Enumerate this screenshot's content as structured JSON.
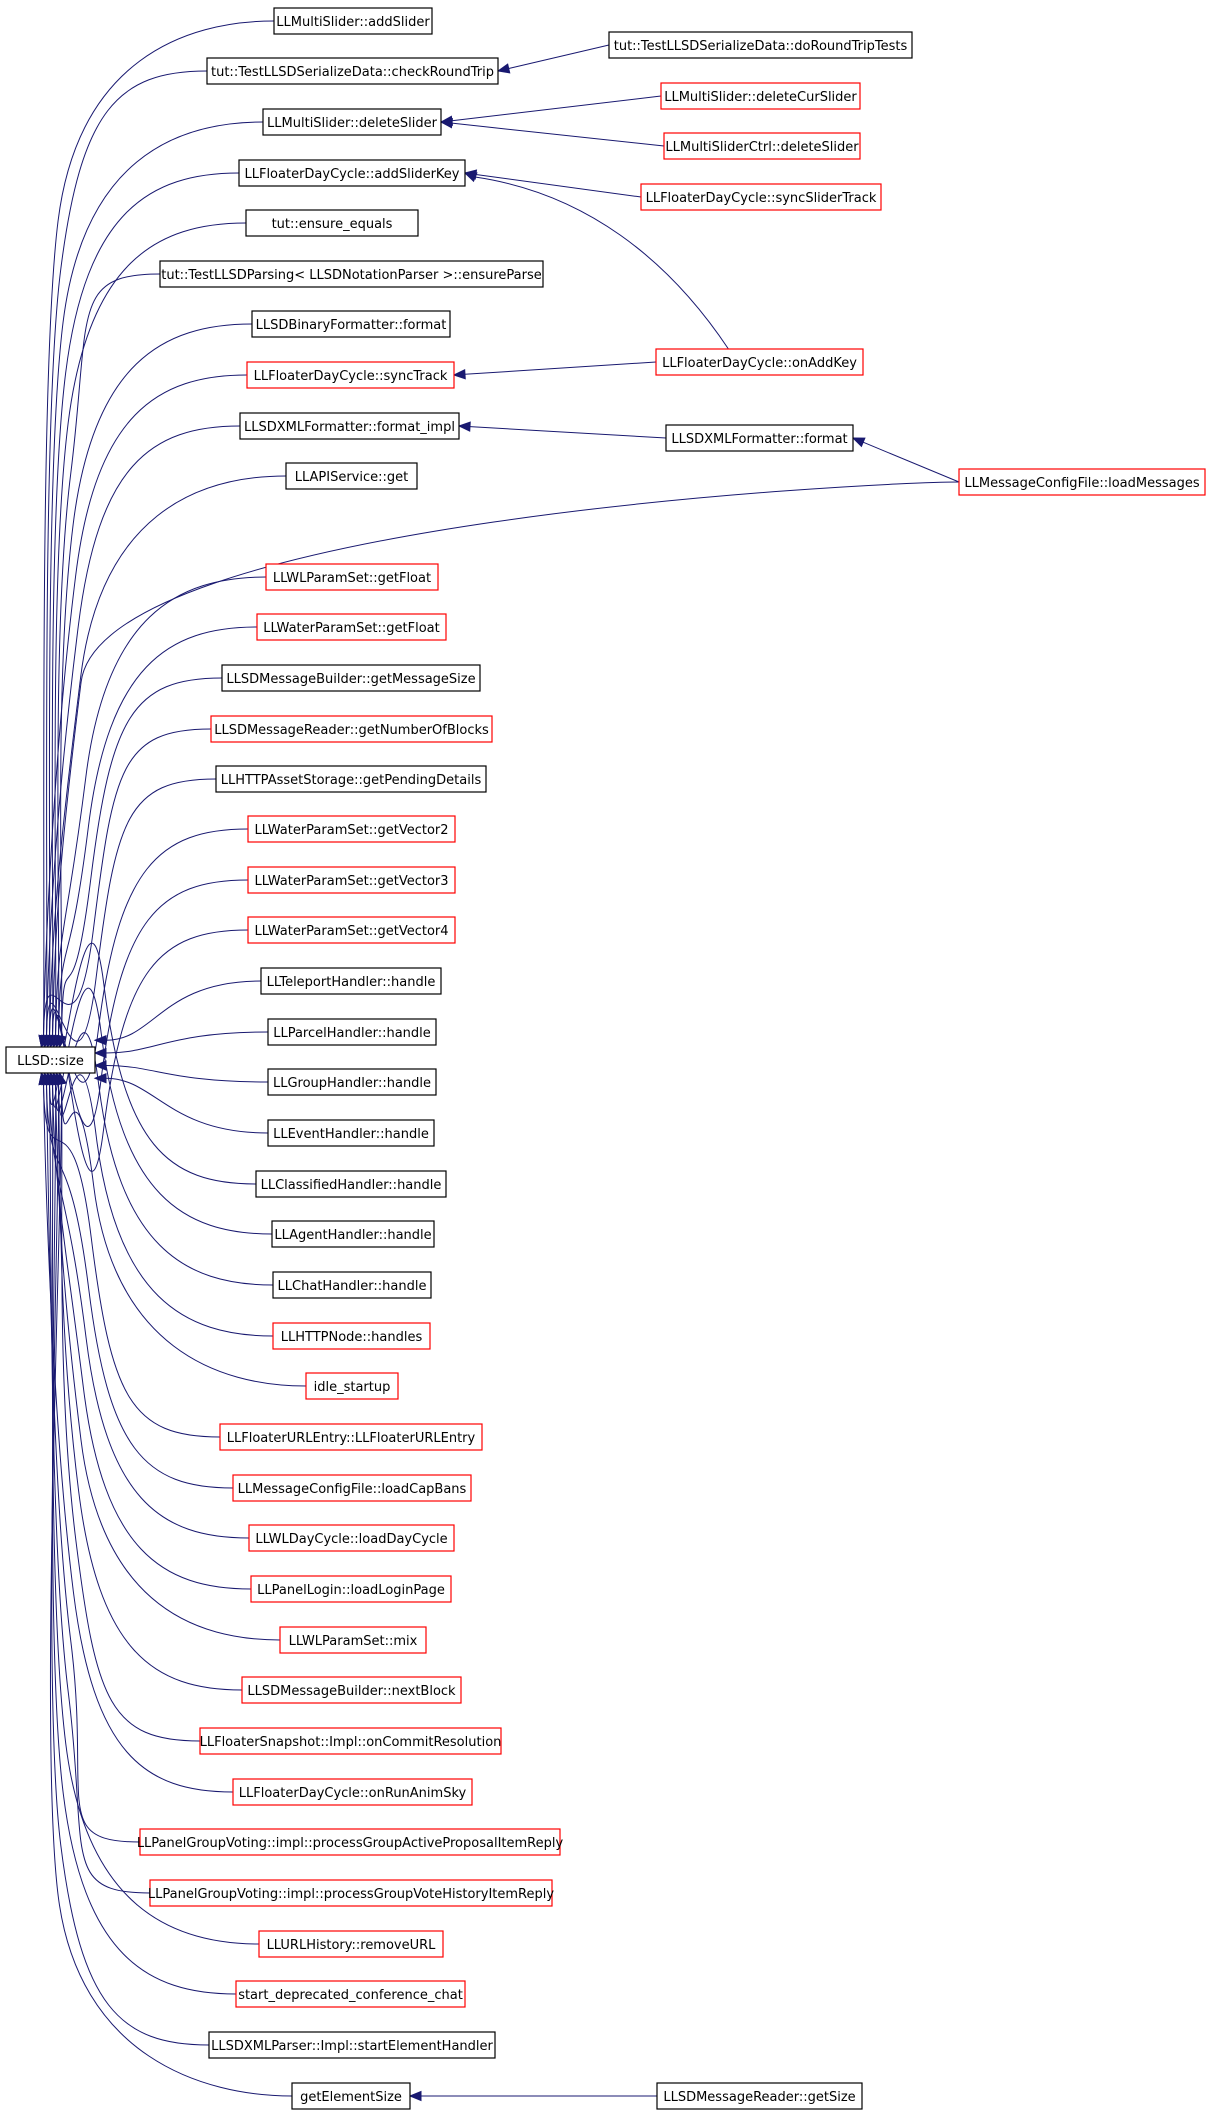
{
  "root": {
    "label": "LLSD::size"
  },
  "callers": [
    {
      "id": "addSlider",
      "label": "LLMultiSlider::addSlider",
      "border": "black"
    },
    {
      "id": "checkRoundTrip",
      "label": "tut::TestLLSDSerializeData::checkRoundTrip",
      "border": "black"
    },
    {
      "id": "deleteSlider",
      "label": "LLMultiSlider::deleteSlider",
      "border": "black"
    },
    {
      "id": "addSliderKey",
      "label": "LLFloaterDayCycle::addSliderKey",
      "border": "black"
    },
    {
      "id": "ensureEquals",
      "label": "tut::ensure_equals",
      "border": "black"
    },
    {
      "id": "ensureParse",
      "label": "tut::TestLLSDParsing< LLSDNotationParser >::ensureParse",
      "border": "black"
    },
    {
      "id": "binaryFormat",
      "label": "LLSDBinaryFormatter::format",
      "border": "black"
    },
    {
      "id": "syncTrack",
      "label": "LLFloaterDayCycle::syncTrack",
      "border": "red"
    },
    {
      "id": "formatImpl",
      "label": "LLSDXMLFormatter::format_impl",
      "border": "black"
    },
    {
      "id": "apiGet",
      "label": "LLAPIService::get",
      "border": "black"
    },
    {
      "id": "loadMessages",
      "label": "LLMessageConfigFile::loadMessages",
      "border": "red"
    },
    {
      "id": "wlGetFloat",
      "label": "LLWLParamSet::getFloat",
      "border": "red"
    },
    {
      "id": "waterGetFloat",
      "label": "LLWaterParamSet::getFloat",
      "border": "red"
    },
    {
      "id": "getMessageSize",
      "label": "LLSDMessageBuilder::getMessageSize",
      "border": "black"
    },
    {
      "id": "getNumberOfBlocks",
      "label": "LLSDMessageReader::getNumberOfBlocks",
      "border": "red"
    },
    {
      "id": "getPendingDetails",
      "label": "LLHTTPAssetStorage::getPendingDetails",
      "border": "black"
    },
    {
      "id": "getVector2",
      "label": "LLWaterParamSet::getVector2",
      "border": "red"
    },
    {
      "id": "getVector3",
      "label": "LLWaterParamSet::getVector3",
      "border": "red"
    },
    {
      "id": "getVector4",
      "label": "LLWaterParamSet::getVector4",
      "border": "red"
    },
    {
      "id": "teleportHandle",
      "label": "LLTeleportHandler::handle",
      "border": "black"
    },
    {
      "id": "parcelHandle",
      "label": "LLParcelHandler::handle",
      "border": "black"
    },
    {
      "id": "groupHandle",
      "label": "LLGroupHandler::handle",
      "border": "black"
    },
    {
      "id": "eventHandle",
      "label": "LLEventHandler::handle",
      "border": "black"
    },
    {
      "id": "classifiedHandle",
      "label": "LLClassifiedHandler::handle",
      "border": "black"
    },
    {
      "id": "agentHandle",
      "label": "LLAgentHandler::handle",
      "border": "black"
    },
    {
      "id": "chatHandle",
      "label": "LLChatHandler::handle",
      "border": "black"
    },
    {
      "id": "httpHandles",
      "label": "LLHTTPNode::handles",
      "border": "red"
    },
    {
      "id": "idleStartup",
      "label": "idle_startup",
      "border": "red"
    },
    {
      "id": "urlEntry",
      "label": "LLFloaterURLEntry::LLFloaterURLEntry",
      "border": "red"
    },
    {
      "id": "loadCapBans",
      "label": "LLMessageConfigFile::loadCapBans",
      "border": "red"
    },
    {
      "id": "loadDayCycle",
      "label": "LLWLDayCycle::loadDayCycle",
      "border": "red"
    },
    {
      "id": "loadLoginPage",
      "label": "LLPanelLogin::loadLoginPage",
      "border": "red"
    },
    {
      "id": "wlMix",
      "label": "LLWLParamSet::mix",
      "border": "red"
    },
    {
      "id": "nextBlock",
      "label": "LLSDMessageBuilder::nextBlock",
      "border": "red"
    },
    {
      "id": "onCommitResolution",
      "label": "LLFloaterSnapshot::Impl::onCommitResolution",
      "border": "red"
    },
    {
      "id": "onRunAnimSky",
      "label": "LLFloaterDayCycle::onRunAnimSky",
      "border": "red"
    },
    {
      "id": "activeProposal",
      "label": "LLPanelGroupVoting::impl::processGroupActiveProposalItemReply",
      "border": "red"
    },
    {
      "id": "voteHistory",
      "label": "LLPanelGroupVoting::impl::processGroupVoteHistoryItemReply",
      "border": "red"
    },
    {
      "id": "removeURL",
      "label": "LLURLHistory::removeURL",
      "border": "red"
    },
    {
      "id": "startConference",
      "label": "start_deprecated_conference_chat",
      "border": "red"
    },
    {
      "id": "startElementHandler",
      "label": "LLSDXMLParser::Impl::startElementHandler",
      "border": "black"
    },
    {
      "id": "getElementSize",
      "label": "getElementSize",
      "border": "black"
    }
  ],
  "indirect_callers": [
    {
      "id": "doRoundTripTests",
      "label": "tut::TestLLSDSerializeData::doRoundTripTests",
      "border": "black"
    },
    {
      "id": "deleteCurSlider",
      "label": "LLMultiSlider::deleteCurSlider",
      "border": "red"
    },
    {
      "id": "ctrlDeleteSlider",
      "label": "LLMultiSliderCtrl::deleteSlider",
      "border": "red"
    },
    {
      "id": "syncSliderTrack",
      "label": "LLFloaterDayCycle::syncSliderTrack",
      "border": "red"
    },
    {
      "id": "onAddKey",
      "label": "LLFloaterDayCycle::onAddKey",
      "border": "red"
    },
    {
      "id": "xmlFormat",
      "label": "LLSDXMLFormatter::format",
      "border": "black"
    },
    {
      "id": "getSize",
      "label": "LLSDMessageReader::getSize",
      "border": "black"
    }
  ],
  "edges": [
    {
      "from": "doRoundTripTests",
      "to": "checkRoundTrip"
    },
    {
      "from": "deleteCurSlider",
      "to": "deleteSlider"
    },
    {
      "from": "ctrlDeleteSlider",
      "to": "deleteSlider"
    },
    {
      "from": "syncSliderTrack",
      "to": "addSliderKey"
    },
    {
      "from": "onAddKey",
      "to": "addSliderKey"
    },
    {
      "from": "onAddKey",
      "to": "syncTrack"
    },
    {
      "from": "xmlFormat",
      "to": "formatImpl"
    },
    {
      "from": "loadMessages",
      "to": "xmlFormat"
    },
    {
      "from": "getSize",
      "to": "getElementSize"
    }
  ],
  "colors": {
    "edge": "#191970",
    "border_black": "#000000",
    "border_red": "#ff0000",
    "root_fill": "#bfbfbf"
  }
}
